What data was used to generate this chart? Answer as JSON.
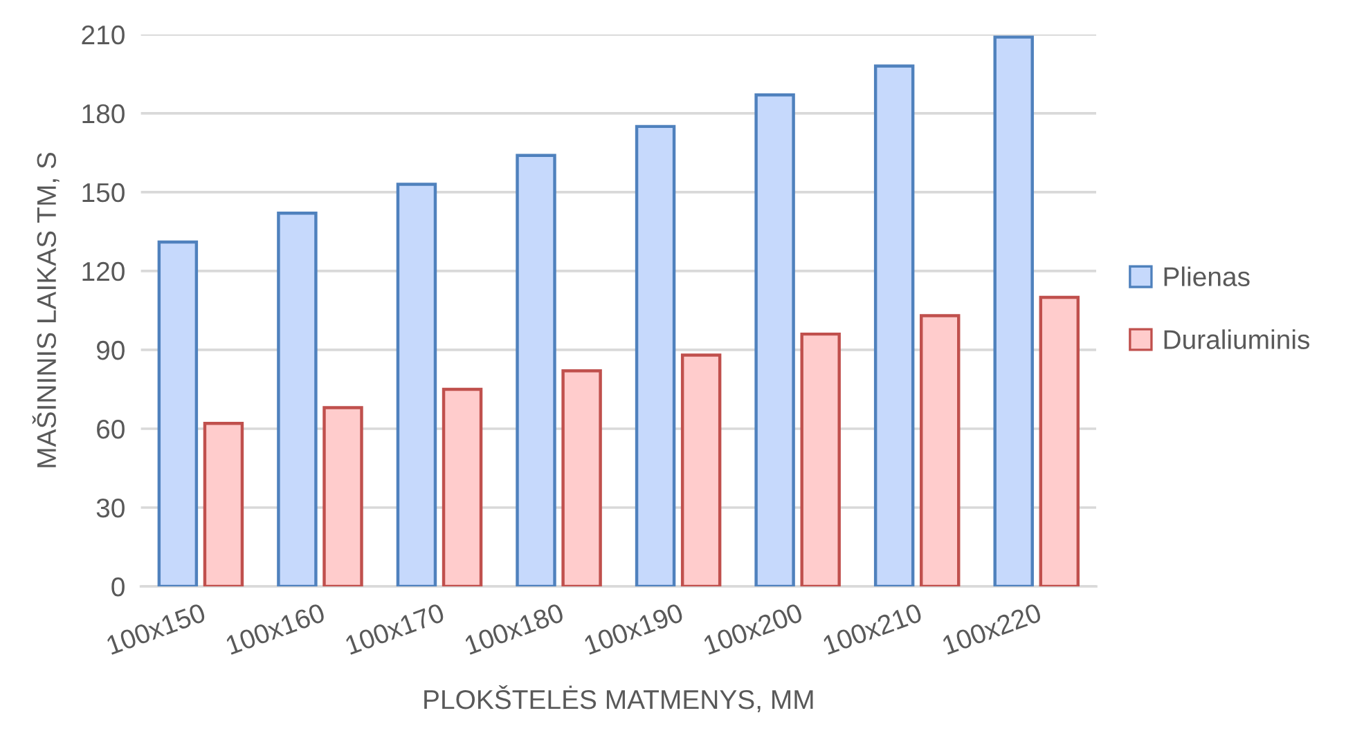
{
  "chart_data": {
    "type": "bar",
    "xlabel": "PLOKŠTELĖS MATMENYS, MM",
    "ylabel": "MAŠININIS LAIKAS TM, S",
    "categories": [
      "100x150",
      "100x160",
      "100x170",
      "100x180",
      "100x190",
      "100x200",
      "100x210",
      "100x220"
    ],
    "series": [
      {
        "name": "Plienas",
        "color": "#c6d9fc",
        "values": [
          131,
          142,
          153,
          164,
          175,
          187,
          198,
          209
        ]
      },
      {
        "name": "Duraliuminis",
        "color": "#ffcccc",
        "values": [
          62,
          68,
          75,
          82,
          88,
          96,
          103,
          110
        ]
      }
    ],
    "ylim": [
      0,
      210
    ],
    "yticks": [
      0,
      30,
      60,
      90,
      120,
      150,
      180,
      210
    ],
    "grid": "y",
    "legend": "right"
  }
}
